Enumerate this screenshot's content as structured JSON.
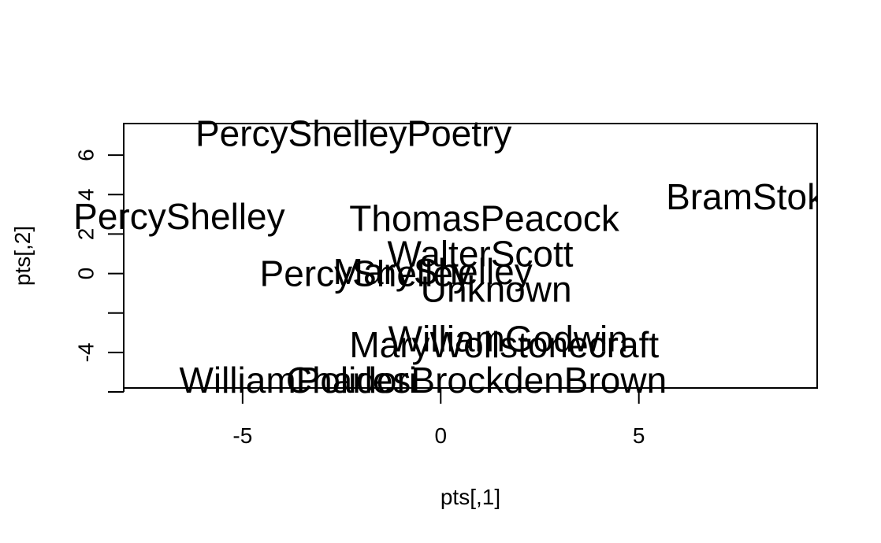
{
  "chart_data": {
    "type": "scatter",
    "title": "",
    "xlabel": "pts[,1]",
    "ylabel": "pts[,2]",
    "xlim": [
      -8.0,
      9.5
    ],
    "ylim": [
      -5.8,
      7.6
    ],
    "x_ticks": [
      -5,
      0,
      5
    ],
    "x_tick_labels": [
      "-5",
      "0",
      "5"
    ],
    "y_ticks": [
      -6,
      -4,
      -2,
      0,
      2,
      4,
      6
    ],
    "y_tick_labels": [
      "",
      "-4",
      "",
      "0",
      "2",
      "4",
      "6"
    ],
    "grid": false,
    "points": [
      {
        "label": "PercyShelleyPoetry",
        "x": -2.2,
        "y": 7.1
      },
      {
        "label": "BramStoker",
        "x": 8.1,
        "y": 3.9
      },
      {
        "label": "PercyShelley",
        "x": -6.6,
        "y": 2.9
      },
      {
        "label": "ThomasPeacock",
        "x": 1.1,
        "y": 2.8
      },
      {
        "label": "WalterScott",
        "x": 1.0,
        "y": 1.0
      },
      {
        "label": "PercyShelley",
        "x": -1.9,
        "y": 0.0
      },
      {
        "label": "MaryShelley",
        "x": -0.2,
        "y": 0.1
      },
      {
        "label": "Unknown",
        "x": 1.4,
        "y": -0.8
      },
      {
        "label": "WilliamGodwin",
        "x": 1.7,
        "y": -3.3
      },
      {
        "label": "MaryWollstonecraft",
        "x": 1.6,
        "y": -3.6
      },
      {
        "label": "WilliamPolidori",
        "x": -3.6,
        "y": -5.4
      },
      {
        "label": "CharlesBrockdenBrown",
        "x": 0.9,
        "y": -5.4
      }
    ]
  }
}
